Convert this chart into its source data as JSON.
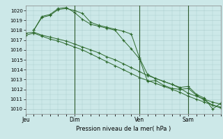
{
  "background_color": "#cce8e8",
  "grid_color": "#aacccc",
  "line_color": "#2d6a2d",
  "marker_color": "#2d6a2d",
  "xlabel": "Pression niveau de la mer( hPa )",
  "ylim": [
    1009.5,
    1020.5
  ],
  "yticks": [
    1010,
    1011,
    1012,
    1013,
    1014,
    1015,
    1016,
    1017,
    1018,
    1019,
    1020
  ],
  "day_labels": [
    "Jeu",
    "Dim",
    "Ven",
    "Sam"
  ],
  "day_positions": [
    0,
    18,
    42,
    60
  ],
  "xmax": 72,
  "series": [
    {
      "x": [
        0,
        3,
        6,
        9,
        12,
        15,
        18,
        21,
        24,
        27,
        30,
        33,
        36,
        39,
        42,
        45,
        48,
        51,
        54,
        57,
        60,
        63,
        66,
        69,
        72
      ],
      "y": [
        1017.7,
        1017.8,
        1017.5,
        1017.3,
        1017.1,
        1016.9,
        1016.6,
        1016.3,
        1016.0,
        1015.7,
        1015.3,
        1015.0,
        1014.6,
        1014.2,
        1013.8,
        1013.4,
        1013.1,
        1012.8,
        1012.5,
        1012.1,
        1011.6,
        1011.3,
        1011.0,
        1010.7,
        1010.5
      ]
    },
    {
      "x": [
        0,
        3,
        6,
        9,
        12,
        15,
        18,
        21,
        24,
        27,
        30,
        33,
        36,
        39,
        42,
        45,
        48,
        51,
        54,
        57,
        60,
        63,
        66,
        69,
        72
      ],
      "y": [
        1017.5,
        1017.7,
        1017.4,
        1017.1,
        1016.9,
        1016.6,
        1016.3,
        1016.0,
        1015.6,
        1015.2,
        1014.8,
        1014.4,
        1014.0,
        1013.6,
        1013.2,
        1012.9,
        1012.6,
        1012.3,
        1012.0,
        1011.7,
        1011.3,
        1011.0,
        1010.7,
        1010.4,
        1010.1
      ]
    },
    {
      "x": [
        3,
        6,
        9,
        12,
        15,
        18,
        21,
        24,
        27,
        30,
        33,
        36,
        39,
        42,
        45,
        48,
        51,
        54,
        57,
        60,
        63,
        66,
        69,
        72
      ],
      "y": [
        1018.0,
        1019.3,
        1019.5,
        1020.1,
        1020.2,
        1020.0,
        1019.7,
        1018.8,
        1018.5,
        1018.3,
        1018.1,
        1017.9,
        1017.6,
        1015.2,
        1013.5,
        1013.1,
        1012.8,
        1012.5,
        1012.2,
        1012.3,
        1011.5,
        1011.1,
        1010.0,
        1010.6
      ]
    },
    {
      "x": [
        3,
        6,
        9,
        12,
        15,
        18,
        21,
        24,
        27,
        30,
        33,
        36,
        39,
        42,
        45,
        48,
        51,
        54,
        57,
        60,
        63,
        66,
        69,
        72
      ],
      "y": [
        1018.0,
        1019.4,
        1019.6,
        1020.2,
        1020.3,
        1019.8,
        1019.1,
        1018.6,
        1018.4,
        1018.2,
        1018.0,
        1017.0,
        1016.1,
        1015.1,
        1012.8,
        1012.9,
        1012.4,
        1012.1,
        1012.0,
        1012.1,
        1011.4,
        1010.9,
        1010.4,
        1010.2
      ]
    }
  ]
}
